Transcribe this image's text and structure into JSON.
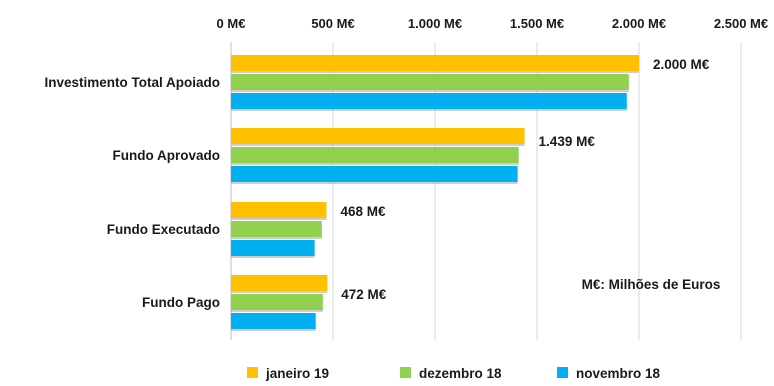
{
  "chart_data": {
    "type": "bar",
    "orientation": "horizontal",
    "categories": [
      "Investimento Total Apoiado",
      "Fundo Aprovado",
      "Fundo Executado",
      "Fundo Pago"
    ],
    "series": [
      {
        "name": "janeiro 19",
        "color": "#ffc000",
        "values": [
          2000,
          1439,
          468,
          472
        ]
      },
      {
        "name": "dezembro 18",
        "color": "#92d050",
        "values": [
          1950,
          1410,
          445,
          450
        ]
      },
      {
        "name": "novembro 18",
        "color": "#00b0f0",
        "values": [
          1940,
          1405,
          410,
          415
        ]
      }
    ],
    "data_labels": [
      "2.000 M€",
      "1.439 M€",
      "468 M€",
      "472 M€"
    ],
    "xlim": [
      0,
      2500
    ],
    "x_ticks": [
      0,
      500,
      1000,
      1500,
      2000,
      2500
    ],
    "x_tick_labels": [
      "0 M€",
      "500 M€",
      "1.000 M€",
      "1.500 M€",
      "2.000 M€",
      "2.500 M€"
    ],
    "axis_position": "top",
    "grid": true,
    "legend_position": "bottom",
    "annotation": "M€: Milhões de Euros"
  }
}
